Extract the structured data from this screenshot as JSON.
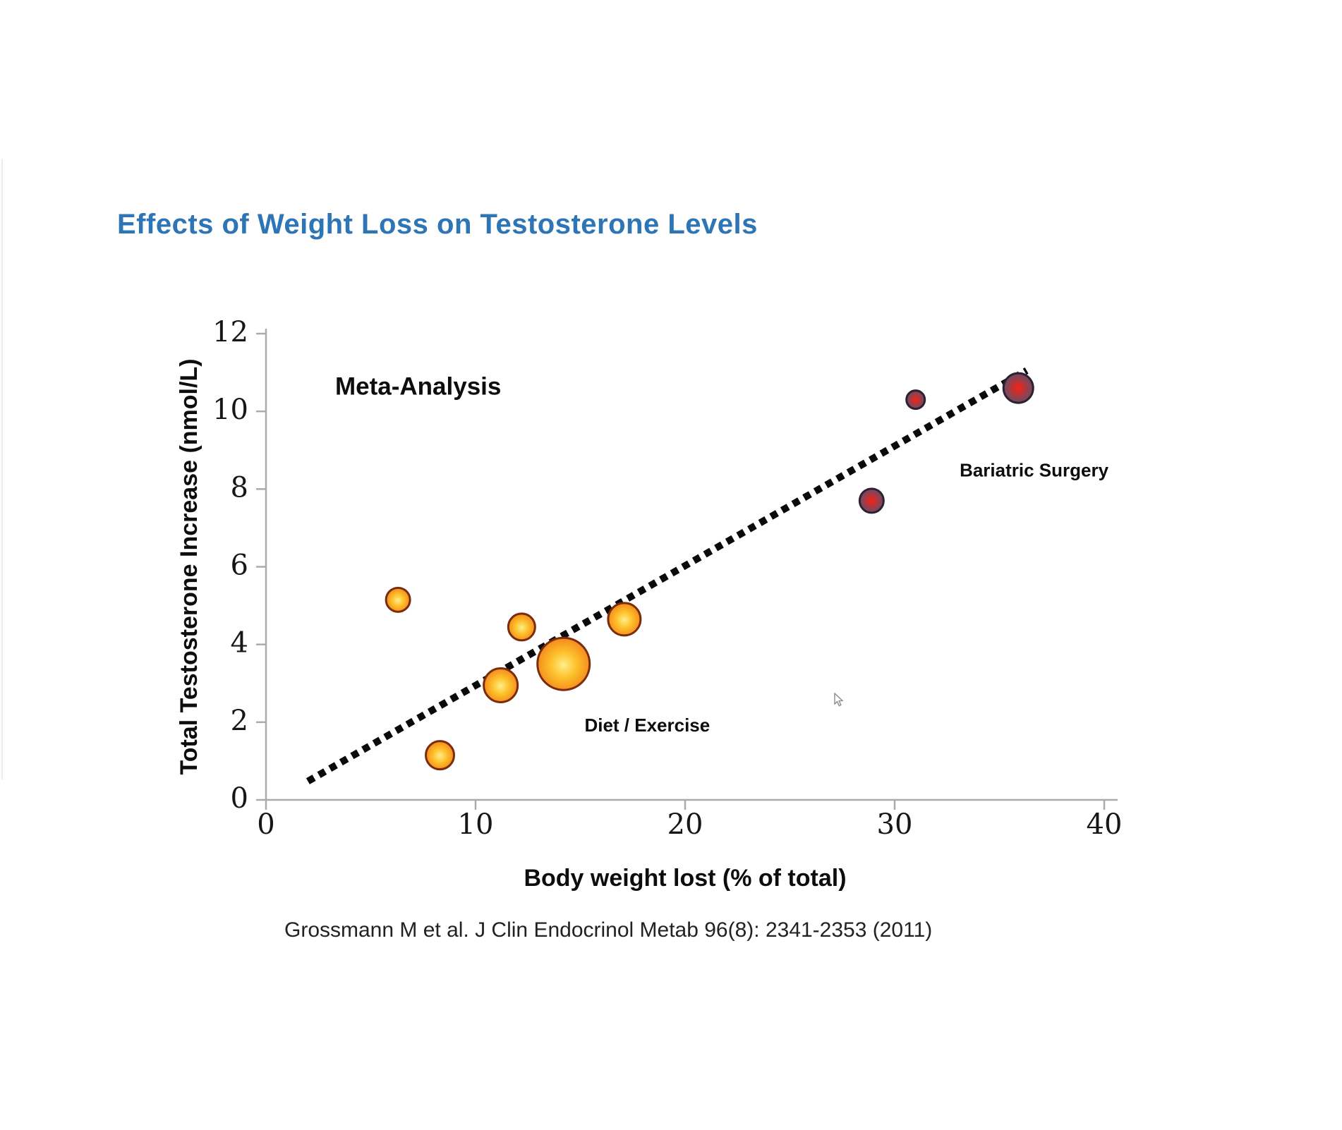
{
  "page": {
    "title": "Effects of Weight Loss on Testosterone Levels",
    "citation": "Grossmann M et al. J Clin Endocrinol Metab 96(8): 2341-2353 (2011)"
  },
  "colors": {
    "title_blue": "#2e75b6",
    "axis_line": "#ababab",
    "trendline": "#0a0a0a",
    "orange_bubble_center": "#ffee8c",
    "orange_bubble_mid": "#fdc22b",
    "orange_bubble_edge": "#ee7d18",
    "orange_bubble_outline": "#7b2c0e",
    "dark_bubble_center": "#f0251b",
    "dark_bubble_mid": "#94404e",
    "dark_bubble_edge": "#6a4a63",
    "dark_bubble_outline": "#2c2133"
  },
  "chart_data": {
    "type": "scatter",
    "subtype": "bubble",
    "xlabel": "Body weight lost (% of total)",
    "ylabel": "Total Testosterone Increase (nmol/L)",
    "xlim": [
      0,
      40
    ],
    "ylim": [
      0,
      12
    ],
    "xticks": [
      0,
      10,
      20,
      30,
      40
    ],
    "yticks": [
      0,
      2,
      4,
      6,
      8,
      10,
      12
    ],
    "grid": false,
    "legend": "none",
    "series": [
      {
        "name": "Diet / Exercise",
        "style": "orange",
        "points": [
          {
            "x": 6.3,
            "y": 5.15,
            "r": 17
          },
          {
            "x": 8.3,
            "y": 1.15,
            "r": 20
          },
          {
            "x": 11.2,
            "y": 2.95,
            "r": 24
          },
          {
            "x": 12.2,
            "y": 4.45,
            "r": 19
          },
          {
            "x": 14.2,
            "y": 3.5,
            "r": 37
          },
          {
            "x": 17.1,
            "y": 4.65,
            "r": 23
          }
        ]
      },
      {
        "name": "Bariatric Surgery",
        "style": "dark_red",
        "points": [
          {
            "x": 28.9,
            "y": 7.7,
            "r": 17
          },
          {
            "x": 31.0,
            "y": 10.3,
            "r": 13
          },
          {
            "x": 35.9,
            "y": 10.6,
            "r": 21
          }
        ]
      }
    ],
    "trendline": {
      "style": "dashed",
      "x1": 2.0,
      "y1": 0.48,
      "x2": 36.3,
      "y2": 11.05
    },
    "annotations": [
      {
        "id": "meta-analysis",
        "text": "Meta-Analysis",
        "x": 3.3,
        "y": 10.6,
        "size": "large"
      },
      {
        "id": "diet-exercise",
        "text": "Diet / Exercise",
        "x": 15.2,
        "y": 1.89,
        "size": "small"
      },
      {
        "id": "bariatric-surgery",
        "text": "Bariatric Surgery",
        "x": 33.1,
        "y": 8.45,
        "size": "small"
      }
    ]
  },
  "cursor": {
    "shape": "arrow-pointer"
  }
}
